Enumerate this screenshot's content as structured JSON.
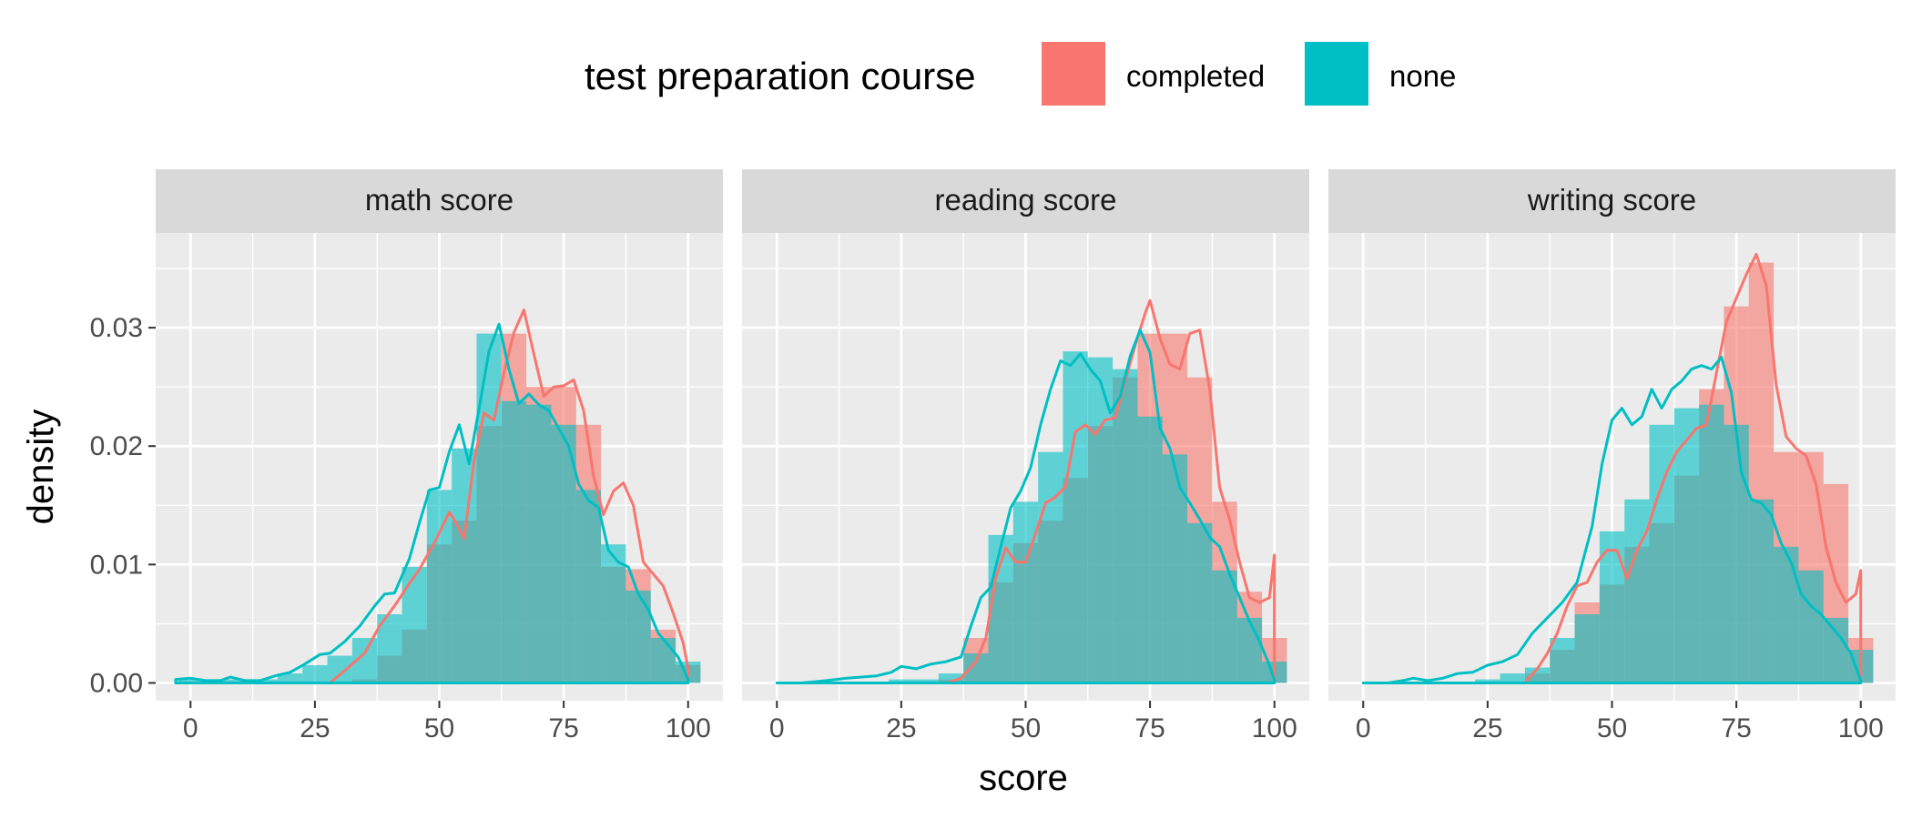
{
  "legend": {
    "title": "test preparation course",
    "entries": [
      {
        "label": "completed",
        "color": "#F8766D"
      },
      {
        "label": "none",
        "color": "#00BFC4"
      }
    ],
    "position": "top"
  },
  "axes": {
    "xlabel": "score",
    "ylabel": "density"
  },
  "chart_data": {
    "type": "histogram-with-density",
    "xlabel": "score",
    "ylabel": "density",
    "xlim": [
      -7,
      107
    ],
    "ylim": [
      -0.0015,
      0.038
    ],
    "xticks": [
      0,
      25,
      50,
      75,
      100
    ],
    "xtick_labels": [
      "0",
      "25",
      "50",
      "75",
      "100"
    ],
    "yticks": [
      0.0,
      0.01,
      0.02,
      0.03
    ],
    "ytick_labels": [
      "0.00",
      "0.01",
      "0.02",
      "0.03"
    ],
    "grid": true,
    "bin_width": 5,
    "bin_centers": [
      0,
      5,
      10,
      15,
      20,
      25,
      30,
      35,
      40,
      45,
      50,
      55,
      60,
      65,
      70,
      75,
      80,
      85,
      90,
      95,
      100
    ],
    "facets": [
      {
        "title": "math score",
        "series": [
          {
            "name": "completed",
            "color": "#F8766D",
            "histogram": [
              0,
              0,
              0,
              0,
              0,
              0,
              0,
              0.0003,
              0.0023,
              0.0045,
              0.0117,
              0.0137,
              0.0217,
              0.0295,
              0.025,
              0.025,
              0.0218,
              0.0098,
              0.0096,
              0.0045,
              0.0015
            ],
            "density": {
              "x": [
                28,
                32,
                35,
                38,
                41,
                44,
                46,
                49,
                52,
                53,
                55,
                57,
                59,
                61,
                63,
                65,
                67,
                69,
                71,
                73,
                75,
                77,
                79,
                81,
                83,
                85,
                87,
                89,
                91,
                93,
                95,
                97,
                99,
                100
              ],
              "y": [
                0.0,
                0.0014,
                0.0025,
                0.0048,
                0.0065,
                0.0084,
                0.0096,
                0.0118,
                0.0144,
                0.0138,
                0.0122,
                0.0188,
                0.0228,
                0.0222,
                0.0262,
                0.0296,
                0.0315,
                0.0278,
                0.0242,
                0.025,
                0.0251,
                0.0256,
                0.023,
                0.0175,
                0.0142,
                0.0162,
                0.0169,
                0.015,
                0.0102,
                0.0092,
                0.0082,
                0.0059,
                0.0034,
                0.0013
              ]
            }
          },
          {
            "name": "none",
            "color": "#00BFC4",
            "histogram": [
              0.0003,
              0.0003,
              0.0003,
              0.0003,
              0.0008,
              0.0015,
              0.0023,
              0.0038,
              0.0058,
              0.0098,
              0.0163,
              0.0198,
              0.0295,
              0.0238,
              0.0235,
              0.0218,
              0.0163,
              0.0117,
              0.0078,
              0.0038,
              0.0018
            ],
            "density": {
              "x": [
                -3,
                0,
                3,
                6,
                8,
                11,
                14,
                17,
                20,
                23,
                26,
                28,
                31,
                34,
                37,
                39,
                41,
                44,
                46,
                48,
                50,
                52,
                54,
                56,
                58,
                60,
                62,
                64,
                66,
                68,
                70,
                72,
                74,
                76,
                78,
                80,
                82,
                84,
                86,
                88,
                90,
                92,
                94,
                96,
                98,
                100
              ],
              "y": [
                0.0003,
                0.0004,
                0.0002,
                0.0002,
                0.0005,
                0.0002,
                0.0002,
                0.0006,
                0.0009,
                0.0016,
                0.0024,
                0.0025,
                0.0035,
                0.0048,
                0.0065,
                0.0075,
                0.0076,
                0.0105,
                0.0135,
                0.0163,
                0.0165,
                0.0195,
                0.0218,
                0.0185,
                0.0232,
                0.028,
                0.0303,
                0.0265,
                0.0236,
                0.0244,
                0.0235,
                0.023,
                0.0215,
                0.02,
                0.0168,
                0.0154,
                0.0148,
                0.0112,
                0.0102,
                0.0098,
                0.0075,
                0.0062,
                0.0042,
                0.0032,
                0.0022,
                0.0003
              ]
            }
          }
        ]
      },
      {
        "title": "reading score",
        "series": [
          {
            "name": "completed",
            "color": "#F8766D",
            "histogram": [
              0,
              0,
              0,
              0,
              0,
              0,
              0,
              0.0003,
              0.0038,
              0.0085,
              0.0118,
              0.0137,
              0.0173,
              0.0217,
              0.0258,
              0.0295,
              0.0295,
              0.0258,
              0.0153,
              0.0077,
              0.0038
            ],
            "density": {
              "x": [
                34,
                37,
                40,
                42,
                44,
                46,
                48,
                50,
                52,
                54,
                56,
                58,
                60,
                62,
                64,
                66,
                68,
                70,
                72,
                74,
                75,
                77,
                79,
                81,
                83,
                85,
                87,
                89,
                91,
                93,
                95,
                97,
                99,
                100
              ],
              "y": [
                0.0,
                0.0004,
                0.0018,
                0.0038,
                0.0089,
                0.0114,
                0.0102,
                0.0102,
                0.0126,
                0.0152,
                0.0157,
                0.0166,
                0.0212,
                0.0218,
                0.021,
                0.0222,
                0.0224,
                0.0255,
                0.0285,
                0.0312,
                0.0323,
                0.0291,
                0.0269,
                0.0265,
                0.0295,
                0.0298,
                0.0248,
                0.0165,
                0.0138,
                0.0102,
                0.0072,
                0.0068,
                0.0072,
                0.0108
              ]
            }
          },
          {
            "name": "none",
            "color": "#00BFC4",
            "histogram": [
              0,
              0,
              0,
              0,
              0,
              0.0003,
              0.0003,
              0.0008,
              0.0025,
              0.0125,
              0.0153,
              0.0195,
              0.028,
              0.0275,
              0.0265,
              0.0225,
              0.0193,
              0.0135,
              0.0095,
              0.0055,
              0.0018
            ],
            "density": {
              "x": [
                0,
                5,
                10,
                14,
                17,
                20,
                23,
                25,
                28,
                31,
                34,
                37,
                39,
                41,
                43,
                45,
                47,
                49,
                51,
                53,
                55,
                57,
                59,
                61,
                63,
                65,
                67,
                69,
                71,
                73,
                75,
                77,
                79,
                81,
                83,
                85,
                87,
                89,
                91,
                93,
                95,
                97,
                99,
                100
              ],
              "y": [
                0.0,
                0.0,
                0.0002,
                0.0004,
                0.0005,
                0.0006,
                0.0009,
                0.0014,
                0.0012,
                0.0016,
                0.0018,
                0.0022,
                0.0048,
                0.0072,
                0.0081,
                0.0115,
                0.0148,
                0.0162,
                0.0182,
                0.0218,
                0.0248,
                0.0272,
                0.0268,
                0.0278,
                0.0265,
                0.0255,
                0.0228,
                0.0242,
                0.0276,
                0.0298,
                0.0279,
                0.0215,
                0.0198,
                0.0165,
                0.0152,
                0.0138,
                0.0123,
                0.0115,
                0.0092,
                0.0072,
                0.0052,
                0.0035,
                0.0015,
                0.0002
              ]
            }
          }
        ]
      },
      {
        "title": "writing score",
        "series": [
          {
            "name": "completed",
            "color": "#F8766D",
            "histogram": [
              0,
              0,
              0,
              0,
              0,
              0,
              0,
              0.0008,
              0.0028,
              0.0068,
              0.0083,
              0.0115,
              0.0135,
              0.0175,
              0.0248,
              0.0318,
              0.0355,
              0.0195,
              0.0195,
              0.0168,
              0.0038
            ],
            "density": {
              "x": [
                33,
                35,
                37,
                39,
                41,
                43,
                45,
                47,
                49,
                51,
                53,
                55,
                57,
                59,
                61,
                63,
                65,
                67,
                69,
                71,
                73,
                75,
                77,
                79,
                81,
                83,
                85,
                87,
                89,
                91,
                93,
                95,
                97,
                99,
                100
              ],
              "y": [
                0.0003,
                0.0012,
                0.0025,
                0.0042,
                0.0065,
                0.0082,
                0.0085,
                0.0102,
                0.0112,
                0.0112,
                0.0088,
                0.0112,
                0.0128,
                0.0155,
                0.0178,
                0.0195,
                0.0205,
                0.0215,
                0.0218,
                0.0262,
                0.0305,
                0.0325,
                0.0345,
                0.0362,
                0.0336,
                0.0252,
                0.0208,
                0.0198,
                0.0192,
                0.0168,
                0.0115,
                0.0085,
                0.0068,
                0.0075,
                0.0095
              ]
            }
          },
          {
            "name": "none",
            "color": "#00BFC4",
            "histogram": [
              0,
              0,
              0,
              0,
              0,
              0.0003,
              0.0008,
              0.0013,
              0.0038,
              0.0058,
              0.0128,
              0.0155,
              0.0218,
              0.0232,
              0.0235,
              0.0218,
              0.0155,
              0.0115,
              0.0095,
              0.0055,
              0.0028
            ],
            "density": {
              "x": [
                0,
                5,
                8,
                10,
                13,
                16,
                19,
                22,
                25,
                28,
                31,
                34,
                37,
                40,
                43,
                46,
                48,
                50,
                52,
                54,
                56,
                58,
                60,
                62,
                64,
                66,
                68,
                70,
                72,
                74,
                76,
                78,
                80,
                82,
                84,
                86,
                88,
                90,
                92,
                94,
                96,
                98,
                100
              ],
              "y": [
                0.0,
                0.0,
                0.0002,
                0.0004,
                0.0002,
                0.0004,
                0.0008,
                0.0009,
                0.0015,
                0.0018,
                0.0024,
                0.0042,
                0.0055,
                0.0068,
                0.0085,
                0.0132,
                0.0185,
                0.0222,
                0.0232,
                0.0218,
                0.0225,
                0.0248,
                0.0232,
                0.0248,
                0.0255,
                0.0265,
                0.0268,
                0.0265,
                0.0275,
                0.0245,
                0.0178,
                0.0155,
                0.0152,
                0.0142,
                0.0118,
                0.0102,
                0.0075,
                0.0065,
                0.0058,
                0.0048,
                0.0038,
                0.0025,
                0.0002
              ]
            }
          }
        ]
      }
    ]
  }
}
